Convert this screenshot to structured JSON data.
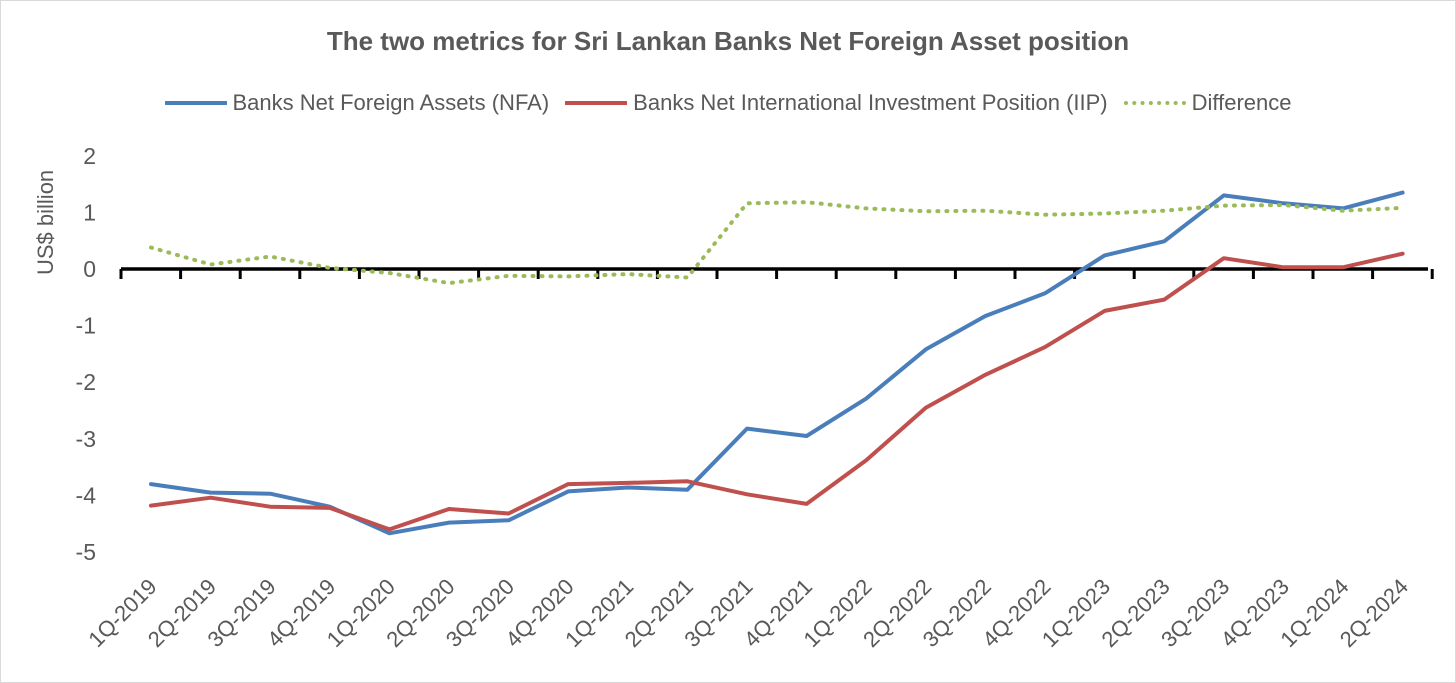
{
  "chart_data": {
    "type": "line",
    "title": "The two metrics for Sri Lankan Banks Net Foreign Asset position",
    "ylabel": "US$ billion",
    "xlabel": "",
    "ylim": [
      -5,
      2
    ],
    "yticks": [
      2,
      1,
      0,
      -1,
      -2,
      -3,
      -4,
      -5
    ],
    "legend_position": "top",
    "grid": false,
    "categories": [
      "1Q-2019",
      "2Q-2019",
      "3Q-2019",
      "4Q-2019",
      "1Q-2020",
      "2Q-2020",
      "3Q-2020",
      "4Q-2020",
      "1Q-2021",
      "2Q-2021",
      "3Q-2021",
      "4Q-2021",
      "1Q-2022",
      "2Q-2022",
      "3Q-2022",
      "4Q-2022",
      "1Q-2023",
      "2Q-2023",
      "3Q-2023",
      "4Q-2023",
      "1Q-2024",
      "2Q-2024"
    ],
    "series": [
      {
        "name": "Banks Net Foreign Assets (NFA)",
        "color": "#4a7ebb",
        "style": "solid",
        "values": [
          -3.8,
          -3.95,
          -3.97,
          -4.2,
          -4.67,
          -4.48,
          -4.44,
          -3.93,
          -3.86,
          -3.9,
          -2.82,
          -2.95,
          -2.29,
          -1.42,
          -0.83,
          -0.43,
          0.24,
          0.49,
          1.3,
          1.16,
          1.07,
          1.35
        ]
      },
      {
        "name": "Banks Net International Investment Position (IIP)",
        "color": "#c0504d",
        "style": "solid",
        "values": [
          -4.18,
          -4.04,
          -4.2,
          -4.22,
          -4.6,
          -4.24,
          -4.32,
          -3.8,
          -3.78,
          -3.75,
          -3.98,
          -4.15,
          -3.38,
          -2.45,
          -1.87,
          -1.38,
          -0.74,
          -0.54,
          0.19,
          0.03,
          0.03,
          0.27
        ]
      },
      {
        "name": "Difference",
        "color": "#9bbb59",
        "style": "dotted",
        "values": [
          0.38,
          0.08,
          0.22,
          0.02,
          -0.07,
          -0.25,
          -0.12,
          -0.13,
          -0.09,
          -0.15,
          1.16,
          1.18,
          1.07,
          1.02,
          1.03,
          0.96,
          0.98,
          1.03,
          1.12,
          1.13,
          1.03,
          1.08
        ]
      }
    ]
  }
}
